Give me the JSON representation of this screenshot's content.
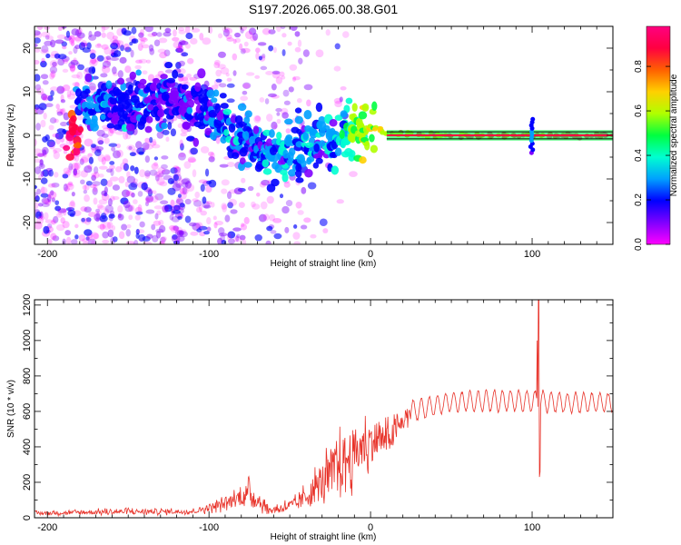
{
  "title": "S197.2026.065.00.38.G01",
  "colors": {
    "series": "#e8332a",
    "frame": "#000000"
  },
  "colormap_stops": [
    "#ff00ff",
    "#7f00ff",
    "#0000ff",
    "#00a0ff",
    "#00ffd0",
    "#00ff40",
    "#b0ff00",
    "#ffd000",
    "#ff6000",
    "#ff0040",
    "#ff0080"
  ],
  "chart_data": [
    {
      "type": "heatmap",
      "title": "S197.2026.065.00.38.G01",
      "xlabel": "Height of straight line (km)",
      "ylabel": "Frequency (Hz)",
      "xlim": [
        -208,
        150
      ],
      "ylim": [
        -25,
        25
      ],
      "xticks": [
        -200,
        -100,
        0,
        100
      ],
      "yticks": [
        -20,
        -10,
        0,
        10,
        20
      ],
      "colorbar": {
        "label": "Normalized spectral amplitude",
        "range": [
          0,
          0.98
        ],
        "ticks": [
          "0.0",
          "0.2",
          "0.4",
          "0.6",
          "0.8"
        ]
      },
      "ridge": [
        {
          "x": -180,
          "y": 8,
          "v": 0.25
        },
        {
          "x": -165,
          "y": 6,
          "v": 0.2
        },
        {
          "x": -155,
          "y": 7,
          "v": 0.18
        },
        {
          "x": -120,
          "y": 8,
          "v": 0.15
        },
        {
          "x": -105,
          "y": 6,
          "v": 0.18
        },
        {
          "x": -95,
          "y": 4,
          "v": 0.22
        },
        {
          "x": -85,
          "y": 1,
          "v": 0.25
        },
        {
          "x": -75,
          "y": -1,
          "v": 0.25
        },
        {
          "x": -68,
          "y": -3,
          "v": 0.25
        },
        {
          "x": -60,
          "y": -6,
          "v": 0.3
        },
        {
          "x": -50,
          "y": -4,
          "v": 0.28
        },
        {
          "x": -40,
          "y": -2,
          "v": 0.25
        },
        {
          "x": -30,
          "y": -2,
          "v": 0.25
        },
        {
          "x": -20,
          "y": 0,
          "v": 0.3
        },
        {
          "x": -10,
          "y": 1,
          "v": 0.55
        },
        {
          "x": 0,
          "y": 2,
          "v": 0.6
        },
        {
          "x": 10,
          "y": 0.5,
          "v": 0.75
        },
        {
          "x": 40,
          "y": 0,
          "v": 0.8
        },
        {
          "x": 70,
          "y": 0,
          "v": 0.85
        },
        {
          "x": 100,
          "y": 0,
          "v": 0.9
        },
        {
          "x": 130,
          "y": 0,
          "v": 0.95
        },
        {
          "x": 150,
          "y": 0,
          "v": 0.95
        }
      ]
    },
    {
      "type": "line",
      "title": "",
      "xlabel": "Height of straight line (km)",
      "ylabel": "SNR (10 * v/v)",
      "xlim": [
        -208,
        150
      ],
      "ylim": [
        0,
        1230
      ],
      "xticks": [
        -200,
        -100,
        0,
        100
      ],
      "yticks": [
        0,
        200,
        400,
        600,
        800,
        1000,
        1200
      ],
      "series": [
        {
          "name": "SNR",
          "envelope": [
            {
              "x": -208,
              "mean": 25,
              "amp": 15
            },
            {
              "x": -150,
              "mean": 35,
              "amp": 25
            },
            {
              "x": -110,
              "mean": 35,
              "amp": 20
            },
            {
              "x": -90,
              "mean": 80,
              "amp": 50
            },
            {
              "x": -75,
              "mean": 140,
              "amp": 100
            },
            {
              "x": -62,
              "mean": 40,
              "amp": 30
            },
            {
              "x": -45,
              "mean": 80,
              "amp": 60
            },
            {
              "x": -30,
              "mean": 200,
              "amp": 170
            },
            {
              "x": -15,
              "mean": 330,
              "amp": 250
            },
            {
              "x": 0,
              "mean": 430,
              "amp": 190
            },
            {
              "x": 12,
              "mean": 450,
              "amp": 120
            },
            {
              "x": 25,
              "mean": 600,
              "amp": 70
            },
            {
              "x": 50,
              "mean": 655,
              "amp": 60
            },
            {
              "x": 80,
              "mean": 660,
              "amp": 70
            },
            {
              "x": 100,
              "mean": 660,
              "amp": 70
            },
            {
              "x": 120,
              "mean": 650,
              "amp": 65
            },
            {
              "x": 150,
              "mean": 650,
              "amp": 60
            }
          ],
          "spikes": [
            {
              "x": 104,
              "y": 1230
            },
            {
              "x": 103,
              "y": 1000
            },
            {
              "x": 105,
              "y": 260
            },
            {
              "x": 104.6,
              "y": 230
            }
          ]
        }
      ]
    }
  ]
}
